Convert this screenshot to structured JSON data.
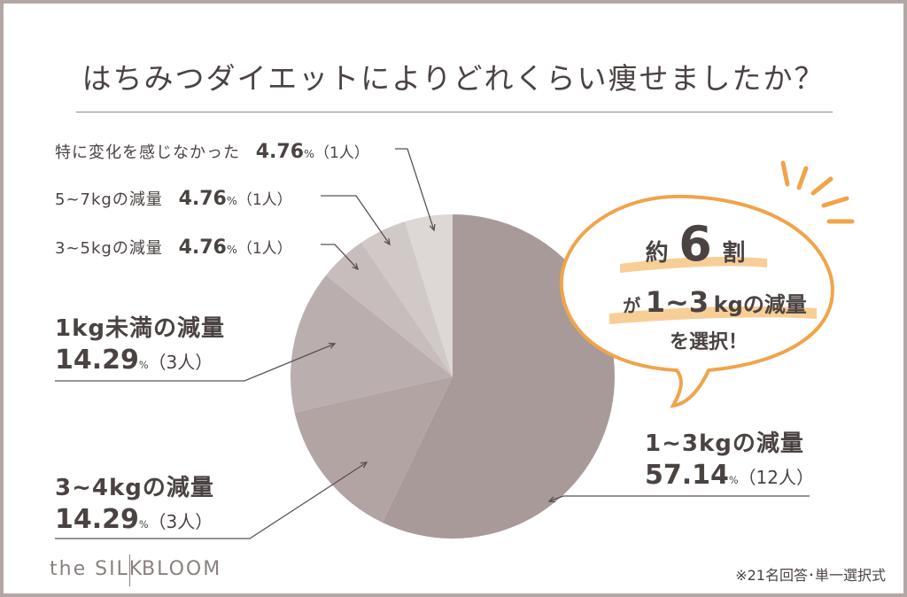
{
  "chart_data": {
    "type": "pie",
    "title": "はちみつダイエットによりどれくらい痩せましたか？",
    "start_angle_deg": 0,
    "direction": "clockwise",
    "slices": [
      {
        "label": "1~3kgの減量",
        "value": 57.14,
        "percent": "57.14",
        "count": "（12人）",
        "color": "#a89a99"
      },
      {
        "label": "3~4kgの減量",
        "value": 14.29,
        "percent": "14.29",
        "count": "（3人）",
        "color": "#b1a4a3"
      },
      {
        "label": "1kg未満の減量",
        "value": 14.29,
        "percent": "14.29",
        "count": "（3人）",
        "color": "#baaeae"
      },
      {
        "label": "3~5kgの減量",
        "value": 4.76,
        "percent": "4.76",
        "count": "（1人）",
        "color": "#c7bdbc"
      },
      {
        "label": "5~7kgの減量",
        "value": 4.76,
        "percent": "4.76",
        "count": "（1人）",
        "color": "#d1c9c8"
      },
      {
        "label": "特に変化を感じなかった",
        "value": 4.76,
        "percent": "4.76",
        "count": "（1人）",
        "color": "#ddd7d6"
      }
    ],
    "percent_unit": "%",
    "callout": {
      "line1_prefix": "約",
      "line1_number": "6",
      "line1_suffix": "割",
      "line2_prefix": "が",
      "line2_highlight": "1~3",
      "line2_suffix": "kgの減量",
      "line3": "を選択！"
    }
  },
  "footer": {
    "brand_left": "the SILK",
    "brand_right": "BLOOM",
    "note": "※21名回答･単一選択式"
  },
  "colors": {
    "text": "#4a4342",
    "accent": "#f0a44a",
    "accent_light": "#f7c98c",
    "frame": "#b3a7a6"
  }
}
